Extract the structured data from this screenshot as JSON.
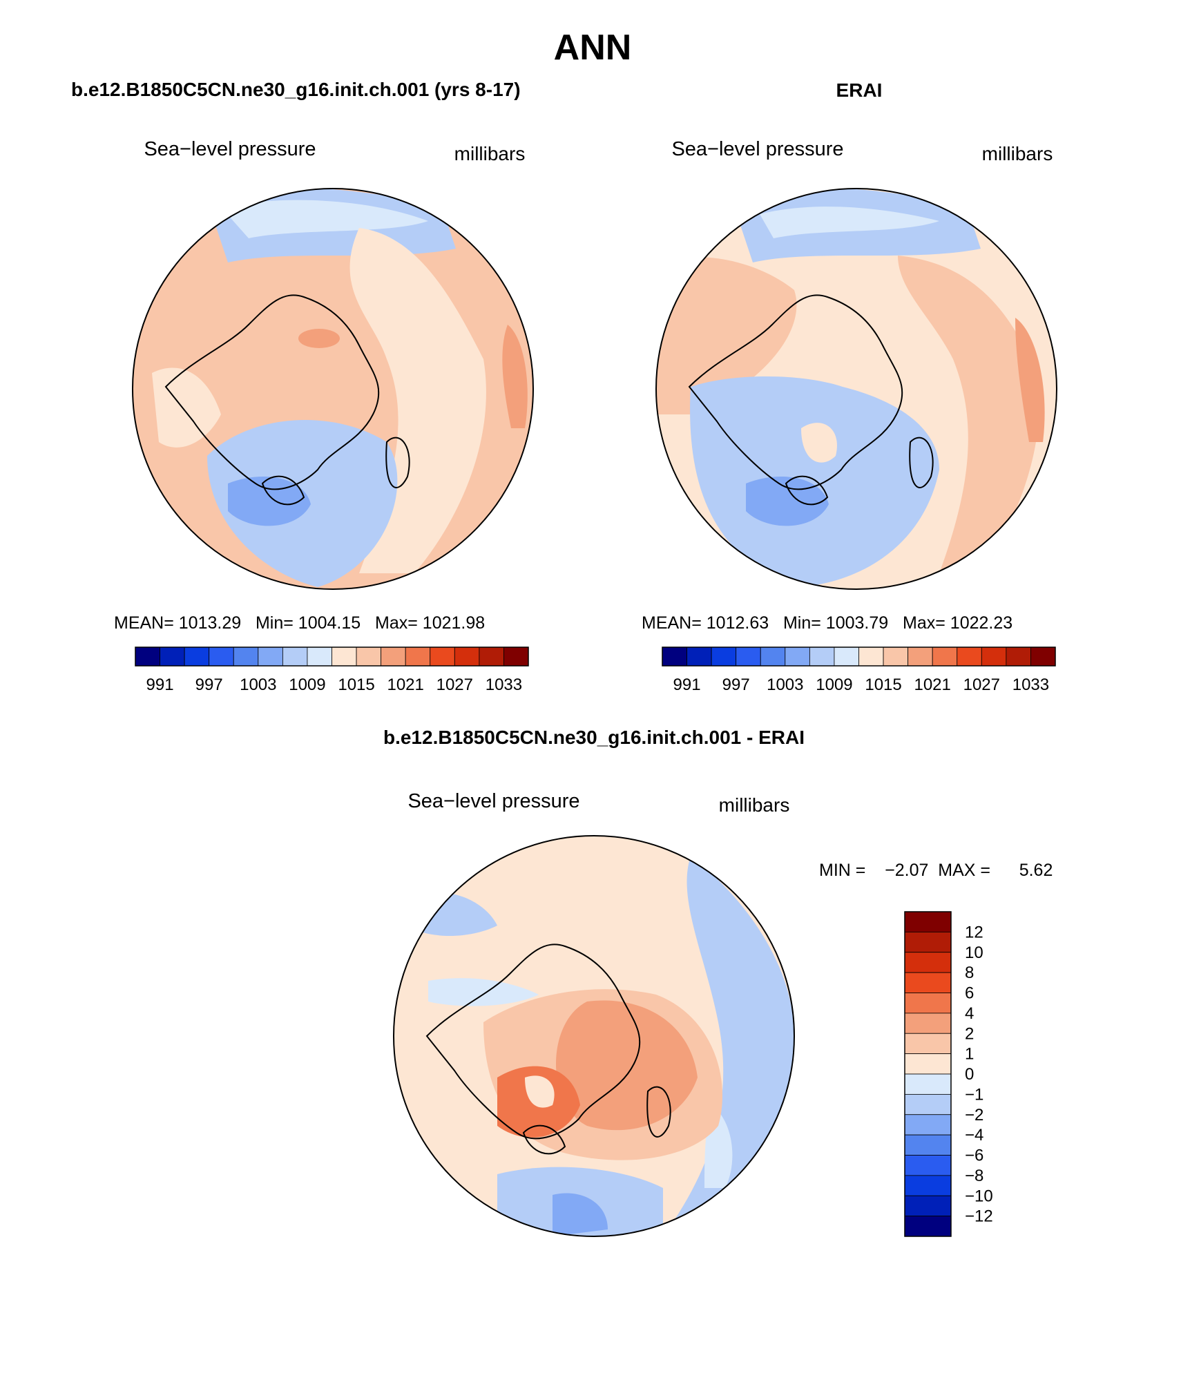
{
  "page": {
    "title": "ANN"
  },
  "panels": [
    {
      "case_title": "b.e12.B1850C5CN.ne30_g16.init.ch.001 (yrs 8-17)",
      "variable": "Sea−level pressure",
      "units": "millibars",
      "stats_text": "MEAN= 1013.29   Min= 1004.15   Max= 1021.98",
      "colorbar_labels": [
        "991",
        "997",
        "1003",
        "1009",
        "1015",
        "1021",
        "1027",
        "1033"
      ]
    },
    {
      "case_title": "ERAI",
      "variable": "Sea−level pressure",
      "units": "millibars",
      "stats_text": "MEAN= 1012.63   Min= 1003.79   Max= 1022.23",
      "colorbar_labels": [
        "991",
        "997",
        "1003",
        "1009",
        "1015",
        "1021",
        "1027",
        "1033"
      ]
    },
    {
      "case_title": "b.e12.B1850C5CN.ne30_g16.init.ch.001 - ERAI",
      "variable": "Sea−level pressure",
      "units": "millibars",
      "stats_text": "MIN =    −2.07  MAX =      5.62",
      "colorbar_labels": [
        "12",
        "10",
        "8",
        "6",
        "4",
        "2",
        "1",
        "0",
        "−1",
        "−2",
        "−4",
        "−6",
        "−8",
        "−10",
        "−12"
      ]
    }
  ],
  "colors": {
    "abs_scale": [
      "#00007f",
      "#0020b8",
      "#0a3de0",
      "#2a5cf0",
      "#5384ef",
      "#82a9f5",
      "#b4cdf7",
      "#d9e9fb",
      "#fde6d3",
      "#f9c6a9",
      "#f3a07b",
      "#f0764b",
      "#ea4a1e",
      "#d42f0c",
      "#b01c06",
      "#7f0000"
    ],
    "diff_scale": [
      "#7f0000",
      "#b01c06",
      "#d42f0c",
      "#ea4a1e",
      "#f0764b",
      "#f3a07b",
      "#f9c6a9",
      "#fde6d3",
      "#d9e9fb",
      "#b4cdf7",
      "#82a9f5",
      "#5384ef",
      "#2a5cf0",
      "#0a3de0",
      "#0020b8",
      "#00007f"
    ]
  }
}
